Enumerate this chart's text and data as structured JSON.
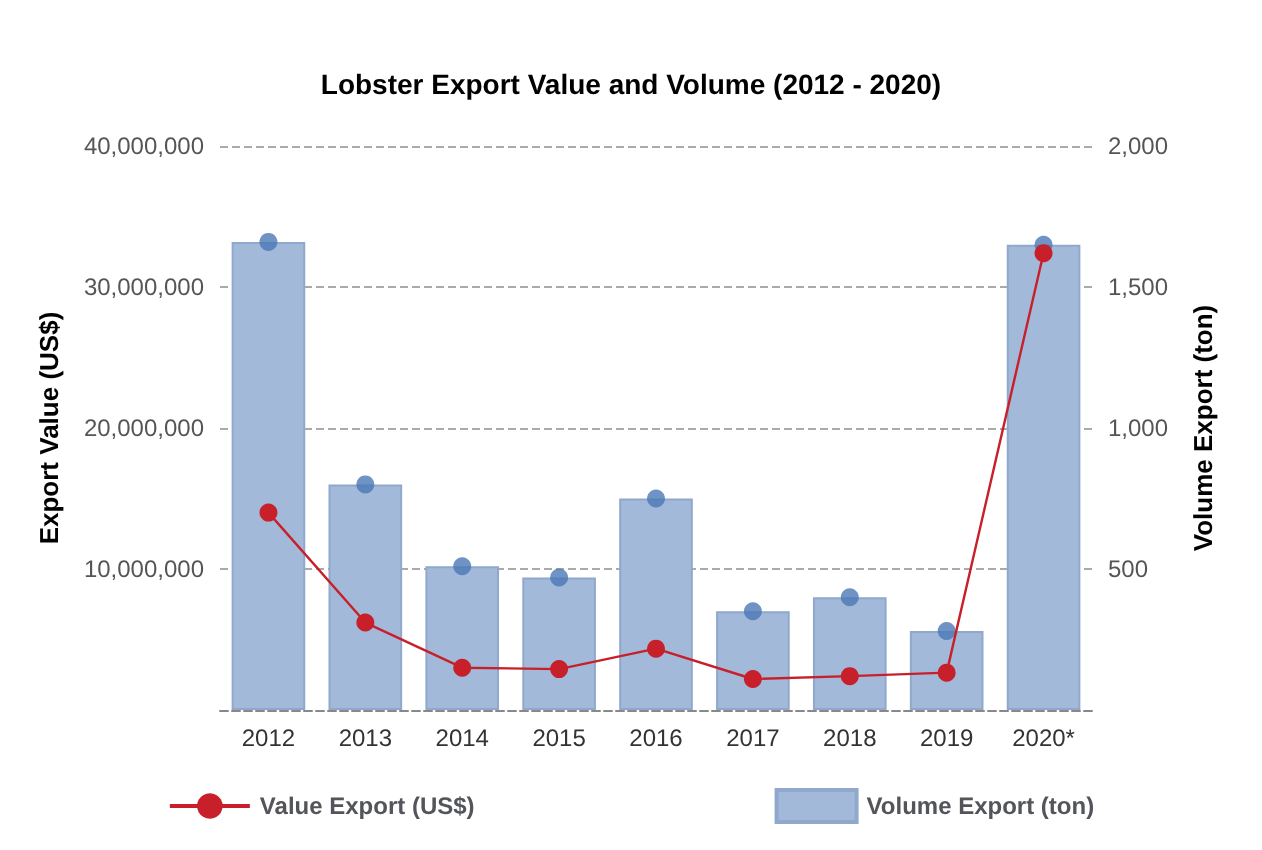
{
  "chart_data": {
    "type": "bar",
    "title": "Lobster Export Value and Volume (2012 - 2020)",
    "ylabel": "Export Value (US$)",
    "y2label": "Volume Export (ton)",
    "categories": [
      "2012",
      "2013",
      "2014",
      "2015",
      "2016",
      "2017",
      "2018",
      "2019",
      "2020*"
    ],
    "series": [
      {
        "name": "Value Export (US$)",
        "type": "line",
        "color": "#c8202a",
        "marker": "circle",
        "values": [
          14000000,
          6200000,
          3000000,
          2900000,
          4350000,
          2200000,
          2400000,
          2650000,
          32400000
        ]
      },
      {
        "name": "Volume Export (ton)",
        "axis": "y2",
        "color": "#a3b9d9",
        "values": [
          1660,
          800,
          510,
          470,
          750,
          350,
          400,
          280,
          1650
        ]
      },
      {
        "type": "scatter",
        "axis": "y2",
        "color": "#4a78b5",
        "marker": "circle",
        "values": [
          1660,
          800,
          510,
          470,
          750,
          350,
          400,
          280,
          1650
        ]
      }
    ],
    "ylim": [
      0,
      40000000
    ],
    "yticks": [
      {
        "value": 0,
        "label": null
      },
      {
        "value": 10000000,
        "label": "10,000,000"
      },
      {
        "value": 20000000,
        "label": "20,000,000"
      },
      {
        "value": 30000000,
        "label": "30,000,000"
      },
      {
        "value": 40000000,
        "label": "40,000,000"
      }
    ],
    "y2lim": [
      0,
      2000
    ],
    "y2ticks": [
      {
        "value": 0,
        "label": null
      },
      500,
      {
        "value": 1000,
        "label": "1,000"
      },
      {
        "value": 1500,
        "label": "1,500"
      },
      {
        "value": 2000,
        "label": "2,000"
      }
    ],
    "grid": "y",
    "legend": "bottom"
  }
}
